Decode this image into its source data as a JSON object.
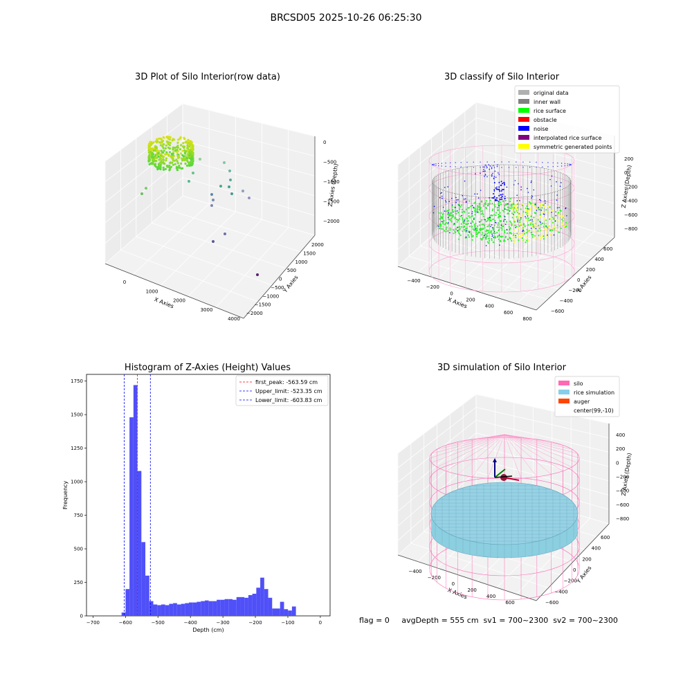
{
  "suptitle": "BRCSD05 2025-10-26 06:25:30",
  "footer": "flag = 0     avgDepth = 555 cm  sv1 = 700~2300  sv2 = 700~2300",
  "colors": {
    "rice_surface": "#00ff00",
    "noise": "#0000ff",
    "obstacle": "#ff0000",
    "inner_wall": "#808080",
    "original_data": "#b0b0b0",
    "interpolated": "#800080",
    "symmetric": "#ffff00",
    "silo": "#ff69b4",
    "rice_sim": "#87ceeb",
    "auger": "#ff4500",
    "hist_bar": "#5050f8",
    "first_peak_line": "#ff0000",
    "limit_line": "#0000ff"
  },
  "panels": {
    "raw": {
      "title": "3D Plot of Silo Interior(row data)",
      "xlabel": "X Axies",
      "ylabel": "Y Axies",
      "zlabel": "Z Axies (Depth)",
      "xticks": [
        "0",
        "1000",
        "2000",
        "3000",
        "4000"
      ],
      "yticks": [
        "2000",
        "1500",
        "1000",
        "500",
        "0",
        "−500",
        "−1000",
        "−1500",
        "−2000"
      ],
      "zticks": [
        "0",
        "−500",
        "−1000",
        "−1500",
        "−2000"
      ]
    },
    "classify": {
      "title": "3D classify of Silo Interior",
      "xlabel": "X Axies",
      "ylabel": "Y Axies",
      "zlabel": "Z Axies (Depth)",
      "xticks": [
        "−400",
        "−200",
        "0",
        "200",
        "400",
        "600",
        "800"
      ],
      "yticks": [
        "600",
        "400",
        "200",
        "0",
        "−200",
        "−400",
        "−600"
      ],
      "zticks": [
        "200",
        "0",
        "−200",
        "−400",
        "−600",
        "−800"
      ],
      "legend": [
        {
          "label": "original data",
          "color": "#b0b0b0"
        },
        {
          "label": "inner wall",
          "color": "#808080"
        },
        {
          "label": "rice surface",
          "color": "#00ff00"
        },
        {
          "label": "obstacle",
          "color": "#ff0000"
        },
        {
          "label": "noise",
          "color": "#0000ff"
        },
        {
          "label": "interpolated rice surface",
          "color": "#800080"
        },
        {
          "label": "symmetric generated points",
          "color": "#ffff00"
        }
      ]
    },
    "simulation": {
      "title": "3D simulation of Silo Interior",
      "xlabel": "X Axies",
      "ylabel": "Y Axies",
      "zlabel": "Z Axies (Depth)",
      "xticks": [
        "−400",
        "−200",
        "0",
        "200",
        "400",
        "600"
      ],
      "yticks": [
        "600",
        "400",
        "200",
        "0",
        "−200",
        "−400",
        "−600"
      ],
      "zticks": [
        "400",
        "200",
        "0",
        "−200",
        "−400",
        "−600",
        "−800"
      ],
      "legend": [
        {
          "label": "silo",
          "color": "#ff69b4"
        },
        {
          "label": "rice simulation",
          "color": "#87ceeb"
        },
        {
          "label": "auger",
          "color": "#ff4500"
        },
        {
          "label": "center(99,-10)",
          "color": "#ffffff"
        }
      ]
    }
  },
  "chart_data": [
    {
      "type": "histogram",
      "title": "Histogram of Z-Axies (Height) Values",
      "xlabel": "Depth (cm)",
      "ylabel": "Frequency",
      "xlim": [
        -720,
        30
      ],
      "ylim": [
        0,
        1800
      ],
      "xticks": [
        -700,
        -600,
        -500,
        -400,
        -300,
        -200,
        -100,
        0
      ],
      "yticks": [
        0,
        250,
        500,
        750,
        1000,
        1250,
        1500,
        1750
      ],
      "bin_width": 12.2,
      "bin_start": -612,
      "bars": [
        25,
        200,
        1480,
        1720,
        1080,
        550,
        300,
        110,
        85,
        80,
        85,
        80,
        90,
        95,
        85,
        90,
        95,
        100,
        100,
        105,
        110,
        115,
        110,
        110,
        120,
        120,
        125,
        125,
        120,
        140,
        140,
        135,
        155,
        165,
        210,
        285,
        200,
        135,
        55,
        55,
        105,
        50,
        40,
        70
      ],
      "vlines": [
        {
          "label": "first_peak: -563.59 cm",
          "value": -563.59,
          "color": "#ff0000"
        },
        {
          "label": "Upper_limit: -523.35 cm",
          "value": -523.35,
          "color": "#0000ff"
        },
        {
          "label": "Lower_limit: -603.83 cm",
          "value": -603.83,
          "color": "#0000ff"
        }
      ],
      "legend_position": "upper right"
    }
  ]
}
